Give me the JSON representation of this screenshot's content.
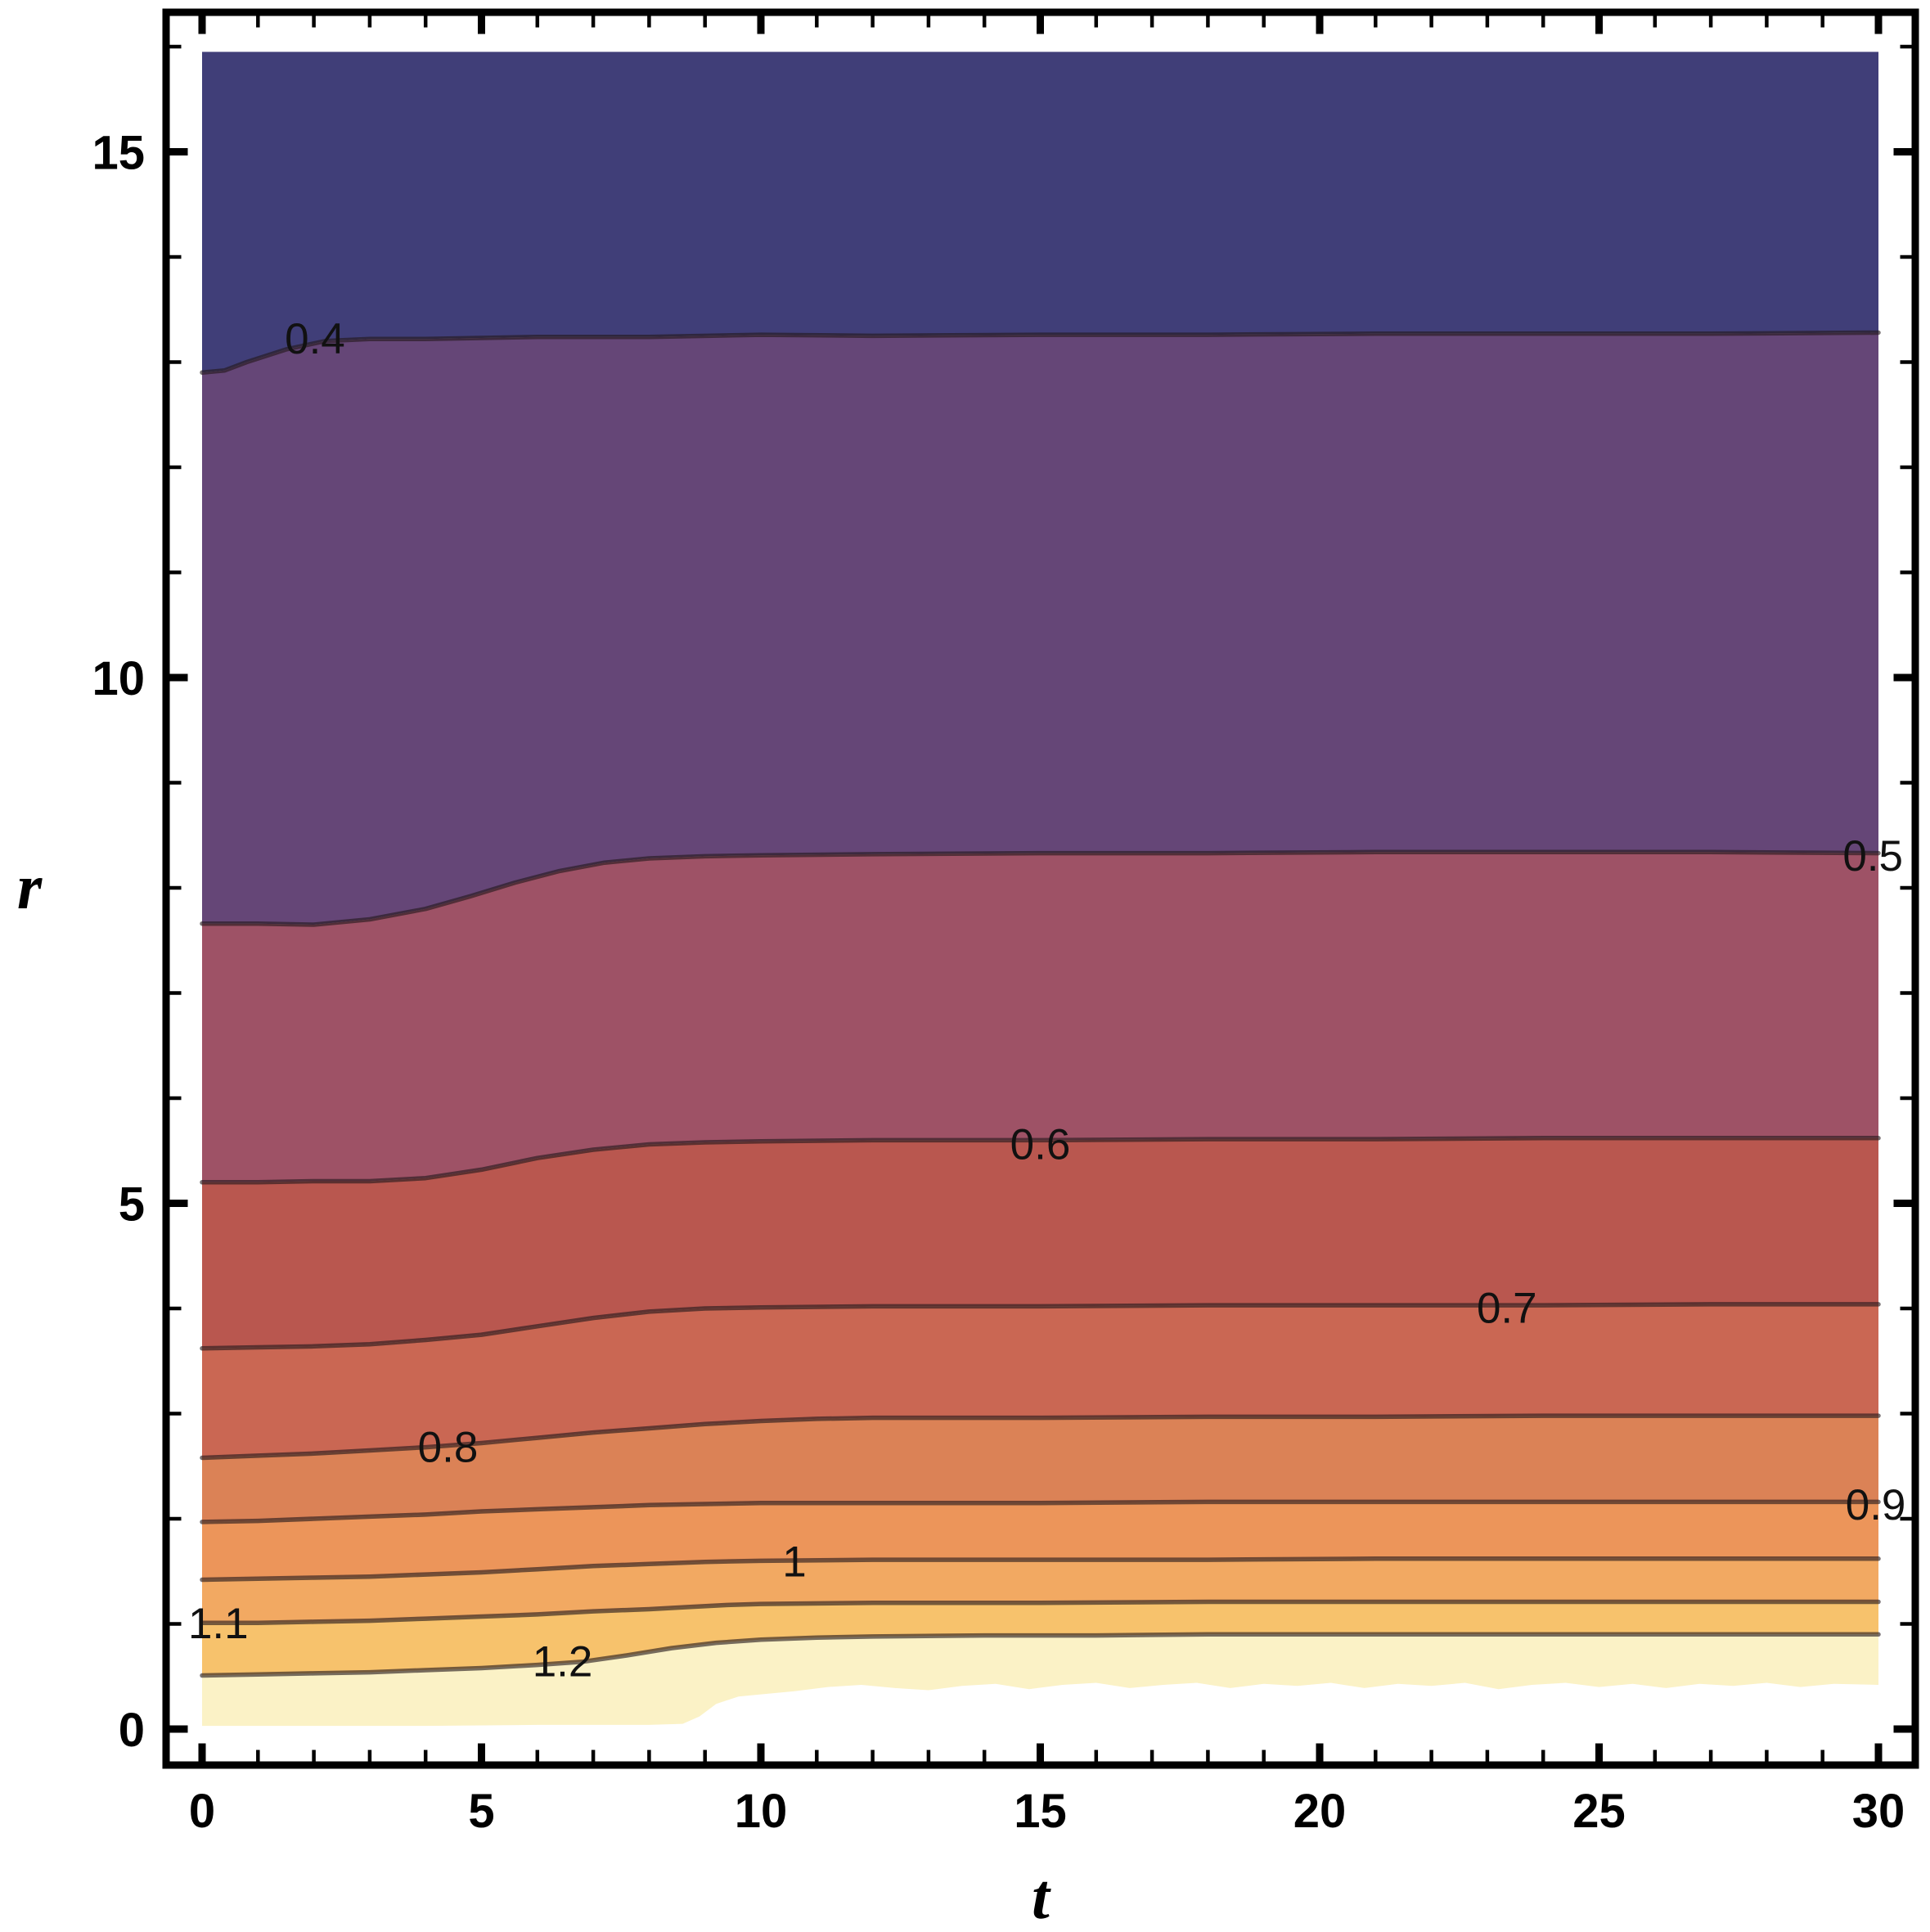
{
  "figure": {
    "background": "#FFFFFF",
    "frame_color": "#000000",
    "tick_label_color": "#000000",
    "contour_label_color": "#111111"
  },
  "axes": {
    "x": {
      "label": "t",
      "range": [
        0,
        30
      ],
      "major_ticks": [
        0,
        5,
        10,
        15,
        20,
        25,
        30
      ],
      "major_tick_labels": [
        "0",
        "5",
        "10",
        "15",
        "20",
        "25",
        "30"
      ],
      "minor_tick_step": 1
    },
    "y": {
      "label": "r",
      "range": [
        0,
        16
      ],
      "major_ticks": [
        0,
        5,
        10,
        15
      ],
      "major_tick_labels": [
        "0",
        "5",
        "10",
        "15"
      ],
      "minor_tick_step": 1,
      "minor_tick_max": 16
    }
  },
  "chart_data": {
    "type": "heatmap",
    "subtype": "filled-contour",
    "title": "",
    "xlabel": "t",
    "ylabel": "r",
    "x_range": [
      0,
      30
    ],
    "y_range": [
      0,
      16
    ],
    "grid": false,
    "legend": "none",
    "top_edge_r": 15.95,
    "line_color": "rgba(35,25,28,0.62)",
    "line_width": 5.5,
    "band_colors": [
      "#403E78",
      "#654677",
      "#9E5266",
      "#B9574F",
      "#CA6753",
      "#DB8256",
      "#EC955A",
      "#F2A962",
      "#F7C26C",
      "#FBF2C6"
    ],
    "contours": [
      {
        "value": 0.4,
        "label": "0.4",
        "label_pos": [
          2.02,
          13.23
        ],
        "points": [
          [
            0,
            12.9
          ],
          [
            0.4,
            12.92
          ],
          [
            0.8,
            13.0
          ],
          [
            1.5,
            13.12
          ],
          [
            2.2,
            13.2
          ],
          [
            3,
            13.22
          ],
          [
            4,
            13.22
          ],
          [
            6,
            13.24
          ],
          [
            8,
            13.24
          ],
          [
            10,
            13.26
          ],
          [
            12,
            13.25
          ],
          [
            15,
            13.26
          ],
          [
            18,
            13.26
          ],
          [
            21,
            13.27
          ],
          [
            24,
            13.27
          ],
          [
            27,
            13.27
          ],
          [
            30,
            13.28
          ]
        ]
      },
      {
        "value": 0.5,
        "label": "0.5",
        "label_pos": [
          29.9,
          8.31
        ],
        "points": [
          [
            0,
            7.66
          ],
          [
            1,
            7.66
          ],
          [
            2,
            7.65
          ],
          [
            3,
            7.7
          ],
          [
            4,
            7.8
          ],
          [
            4.8,
            7.92
          ],
          [
            5.6,
            8.05
          ],
          [
            6.4,
            8.16
          ],
          [
            7.2,
            8.24
          ],
          [
            8,
            8.28
          ],
          [
            9,
            8.3
          ],
          [
            10,
            8.31
          ],
          [
            12,
            8.32
          ],
          [
            15,
            8.33
          ],
          [
            18,
            8.33
          ],
          [
            21,
            8.34
          ],
          [
            24,
            8.34
          ],
          [
            27,
            8.34
          ],
          [
            30,
            8.33
          ]
        ]
      },
      {
        "value": 0.6,
        "label": "0.6",
        "label_pos": [
          15.0,
          5.57
        ],
        "points": [
          [
            0,
            5.2
          ],
          [
            1,
            5.2
          ],
          [
            2,
            5.21
          ],
          [
            3,
            5.21
          ],
          [
            4,
            5.24
          ],
          [
            5,
            5.32
          ],
          [
            6,
            5.43
          ],
          [
            7,
            5.51
          ],
          [
            8,
            5.56
          ],
          [
            9,
            5.58
          ],
          [
            10,
            5.59
          ],
          [
            12,
            5.6
          ],
          [
            15,
            5.6
          ],
          [
            18,
            5.61
          ],
          [
            21,
            5.61
          ],
          [
            24,
            5.62
          ],
          [
            27,
            5.62
          ],
          [
            30,
            5.62
          ]
        ]
      },
      {
        "value": 0.7,
        "label": "0.7",
        "label_pos": [
          23.35,
          4.01
        ],
        "points": [
          [
            0,
            3.62
          ],
          [
            1,
            3.63
          ],
          [
            2,
            3.64
          ],
          [
            3,
            3.66
          ],
          [
            4,
            3.7
          ],
          [
            5,
            3.75
          ],
          [
            6,
            3.83
          ],
          [
            7,
            3.91
          ],
          [
            8,
            3.97
          ],
          [
            9,
            4.0
          ],
          [
            10,
            4.01
          ],
          [
            12,
            4.02
          ],
          [
            15,
            4.02
          ],
          [
            18,
            4.03
          ],
          [
            21,
            4.03
          ],
          [
            24,
            4.03
          ],
          [
            27,
            4.04
          ],
          [
            30,
            4.04
          ]
        ]
      },
      {
        "value": 0.8,
        "label": "0.8",
        "label_pos": [
          4.4,
          2.69
        ],
        "points": [
          [
            0,
            2.58
          ],
          [
            1,
            2.6
          ],
          [
            2,
            2.62
          ],
          [
            3,
            2.65
          ],
          [
            4,
            2.68
          ],
          [
            5,
            2.72
          ],
          [
            6,
            2.77
          ],
          [
            7,
            2.82
          ],
          [
            8,
            2.86
          ],
          [
            9,
            2.9
          ],
          [
            10,
            2.93
          ],
          [
            11,
            2.95
          ],
          [
            12,
            2.96
          ],
          [
            15,
            2.96
          ],
          [
            18,
            2.97
          ],
          [
            21,
            2.97
          ],
          [
            24,
            2.98
          ],
          [
            27,
            2.98
          ],
          [
            30,
            2.98
          ]
        ]
      },
      {
        "value": 0.9,
        "label": "0.9",
        "label_pos": [
          29.95,
          2.14
        ],
        "points": [
          [
            0,
            1.97
          ],
          [
            1,
            1.98
          ],
          [
            2,
            2.0
          ],
          [
            3,
            2.02
          ],
          [
            4,
            2.04
          ],
          [
            5,
            2.07
          ],
          [
            6,
            2.09
          ],
          [
            7,
            2.11
          ],
          [
            8,
            2.13
          ],
          [
            9,
            2.14
          ],
          [
            10,
            2.15
          ],
          [
            12,
            2.15
          ],
          [
            15,
            2.15
          ],
          [
            18,
            2.16
          ],
          [
            21,
            2.16
          ],
          [
            24,
            2.16
          ],
          [
            27,
            2.16
          ],
          [
            30,
            2.16
          ]
        ]
      },
      {
        "value": 1.0,
        "label": "1",
        "label_pos": [
          10.6,
          1.6
        ],
        "points": [
          [
            0,
            1.42
          ],
          [
            1,
            1.43
          ],
          [
            2,
            1.44
          ],
          [
            3,
            1.45
          ],
          [
            4,
            1.47
          ],
          [
            5,
            1.49
          ],
          [
            6,
            1.52
          ],
          [
            7,
            1.55
          ],
          [
            8,
            1.57
          ],
          [
            9,
            1.59
          ],
          [
            10,
            1.6
          ],
          [
            12,
            1.61
          ],
          [
            15,
            1.61
          ],
          [
            18,
            1.61
          ],
          [
            21,
            1.62
          ],
          [
            24,
            1.62
          ],
          [
            27,
            1.62
          ],
          [
            30,
            1.62
          ]
        ]
      },
      {
        "value": 1.1,
        "label": "1.1",
        "label_pos": [
          0.29,
          1.01
        ],
        "points": [
          [
            0,
            1.01
          ],
          [
            1,
            1.01
          ],
          [
            2,
            1.02
          ],
          [
            3,
            1.03
          ],
          [
            4,
            1.05
          ],
          [
            5,
            1.07
          ],
          [
            6,
            1.09
          ],
          [
            7,
            1.12
          ],
          [
            8,
            1.14
          ],
          [
            8.7,
            1.16
          ],
          [
            9.4,
            1.18
          ],
          [
            10,
            1.19
          ],
          [
            12,
            1.2
          ],
          [
            15,
            1.2
          ],
          [
            18,
            1.21
          ],
          [
            21,
            1.21
          ],
          [
            24,
            1.21
          ],
          [
            27,
            1.21
          ],
          [
            30,
            1.21
          ]
        ]
      },
      {
        "value": 1.2,
        "label": "1.2",
        "label_pos": [
          6.45,
          0.65
        ],
        "points": [
          [
            0,
            0.51
          ],
          [
            1,
            0.52
          ],
          [
            2,
            0.53
          ],
          [
            3,
            0.54
          ],
          [
            4,
            0.56
          ],
          [
            5,
            0.58
          ],
          [
            6,
            0.61
          ],
          [
            6.8,
            0.64
          ],
          [
            7.6,
            0.7
          ],
          [
            8.4,
            0.77
          ],
          [
            9.2,
            0.82
          ],
          [
            10,
            0.85
          ],
          [
            11,
            0.87
          ],
          [
            12,
            0.88
          ],
          [
            14,
            0.89
          ],
          [
            16,
            0.89
          ],
          [
            18,
            0.9
          ],
          [
            21,
            0.9
          ],
          [
            24,
            0.9
          ],
          [
            27,
            0.9
          ],
          [
            30,
            0.9
          ]
        ]
      }
    ],
    "lower_white_boundary": {
      "points": [
        [
          0,
          0.03
        ],
        [
          2,
          0.03
        ],
        [
          4,
          0.03
        ],
        [
          6,
          0.04
        ],
        [
          8,
          0.04
        ],
        [
          8.6,
          0.05
        ],
        [
          8.9,
          0.12
        ],
        [
          9.2,
          0.24
        ],
        [
          9.6,
          0.31
        ],
        [
          10,
          0.33
        ],
        [
          10.6,
          0.36
        ],
        [
          11.2,
          0.4
        ],
        [
          11.8,
          0.42
        ],
        [
          12.4,
          0.39
        ],
        [
          13,
          0.37
        ],
        [
          13.6,
          0.41
        ],
        [
          14.2,
          0.43
        ],
        [
          14.8,
          0.38
        ],
        [
          15.4,
          0.42
        ],
        [
          16,
          0.44
        ],
        [
          16.6,
          0.39
        ],
        [
          17.2,
          0.42
        ],
        [
          17.8,
          0.44
        ],
        [
          18.4,
          0.39
        ],
        [
          19,
          0.43
        ],
        [
          19.6,
          0.41
        ],
        [
          20.2,
          0.44
        ],
        [
          20.8,
          0.39
        ],
        [
          21.4,
          0.43
        ],
        [
          22,
          0.41
        ],
        [
          22.6,
          0.44
        ],
        [
          23.2,
          0.38
        ],
        [
          23.8,
          0.42
        ],
        [
          24.4,
          0.44
        ],
        [
          25,
          0.4
        ],
        [
          25.6,
          0.43
        ],
        [
          26.2,
          0.39
        ],
        [
          26.8,
          0.43
        ],
        [
          27.4,
          0.41
        ],
        [
          28,
          0.44
        ],
        [
          28.6,
          0.4
        ],
        [
          29.2,
          0.43
        ],
        [
          30,
          0.42
        ]
      ]
    }
  }
}
